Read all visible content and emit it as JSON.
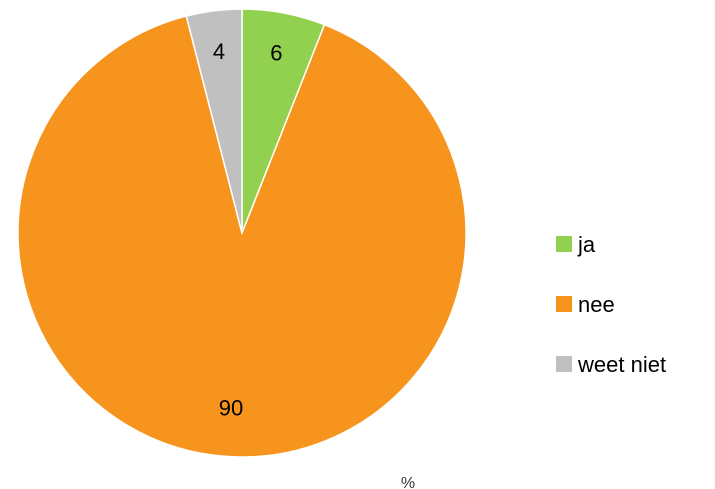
{
  "chart_data": {
    "type": "pie",
    "categories": [
      "ja",
      "nee",
      "weet niet"
    ],
    "values": [
      6,
      90,
      4
    ],
    "colors": [
      "#92d050",
      "#f7941d",
      "#c0c0c0"
    ],
    "unit_label": "%",
    "legend_position": "right",
    "start_angle_degrees": 0,
    "direction": "clockwise"
  }
}
